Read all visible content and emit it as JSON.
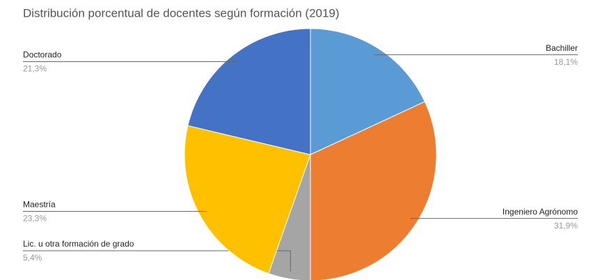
{
  "chart_data": {
    "type": "pie",
    "title": "Distribución porcentual de docentes según formación (2019)",
    "categories": [
      "Bachiller",
      "Ingeniero Agrónomo",
      "Lic. u otra formación de grado",
      "Maestría",
      "Doctorado"
    ],
    "values": [
      18.1,
      31.9,
      5.4,
      23.3,
      21.3
    ],
    "value_labels": [
      "18,1%",
      "31,9%",
      "5,4%",
      "23,3%",
      "21,3%"
    ],
    "colors": [
      "#5b9bd5",
      "#ed7d31",
      "#a5a5a5",
      "#ffc000",
      "#4472c4"
    ]
  }
}
